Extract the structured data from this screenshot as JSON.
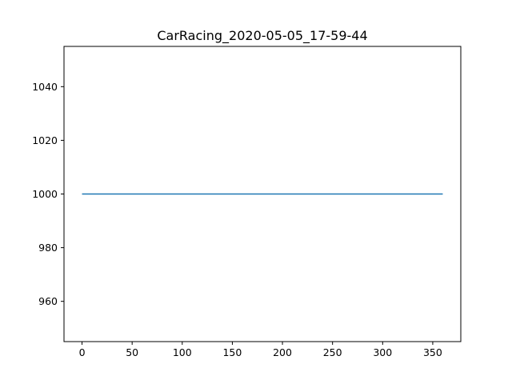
{
  "chart_data": {
    "type": "line",
    "title": "CarRacing_2020-05-05_17-59-44",
    "xlabel": "",
    "ylabel": "",
    "xlim": [
      -18,
      378
    ],
    "ylim": [
      945,
      1055
    ],
    "x_ticks": [
      0,
      50,
      100,
      150,
      200,
      250,
      300,
      350
    ],
    "y_ticks": [
      960,
      980,
      1000,
      1020,
      1040
    ],
    "grid": false,
    "legend": "none",
    "series": [
      {
        "color": "#1f77b4",
        "x": [
          0,
          360
        ],
        "y": [
          1000,
          1000
        ]
      }
    ]
  }
}
